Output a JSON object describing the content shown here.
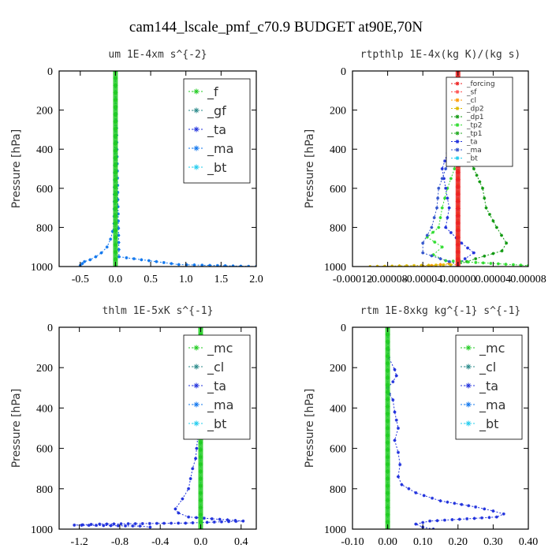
{
  "suptitle": "cam144_lscale_pmf_c70.9  BUDGET at90E,70N",
  "colors": {
    "green": "#22cc22",
    "teal": "#2a8a8a",
    "blue": "#2233dd",
    "dodger": "#1177ee",
    "cyan": "#22ccee",
    "red": "#ee2222",
    "lightred": "#ff5555",
    "orange": "#ff9900",
    "gold": "#ddbb00",
    "lime": "#33dd33",
    "darkgreen": "#119911",
    "forestgreen": "#22aa22",
    "royal": "#3355cc"
  },
  "chart_data": [
    {
      "type": "line",
      "title": "um  1E-4xm s^{-2}",
      "xlabel": "",
      "ylabel": "Pressure [hPa]",
      "xlim": [
        -0.8,
        2.0
      ],
      "ylim": [
        1000,
        0
      ],
      "xticks": [
        -0.5,
        0.0,
        0.5,
        1.0,
        1.5,
        2.0
      ],
      "xtick_labels": [
        "-0.5",
        "0.0",
        "0.5",
        "1.0",
        "1.5",
        "2.0"
      ],
      "yticks": [
        0,
        200,
        400,
        600,
        800,
        1000
      ],
      "ytick_labels": [
        "0",
        "200",
        "400",
        "600",
        "800",
        "1000"
      ],
      "legend": {
        "position": "top-right",
        "size": "large"
      },
      "series": [
        {
          "name": "_f",
          "color": "green",
          "bold": true,
          "pressure": [
            0,
            1000
          ],
          "values": [
            0,
            0
          ]
        },
        {
          "name": "_gf",
          "color": "teal",
          "pressure": [
            0,
            1000
          ],
          "values": [
            0,
            0
          ]
        },
        {
          "name": "_ta",
          "color": "blue",
          "pressure": [
            0,
            1000
          ],
          "values": [
            0,
            0
          ]
        },
        {
          "name": "_ma",
          "color": "dodger",
          "pressure": [
            0,
            950,
            990,
            1000
          ],
          "values": [
            0,
            0.05,
            0.9,
            2.0
          ]
        },
        {
          "name": "_bt",
          "color": "cyan",
          "pressure": [
            0,
            1000
          ],
          "values": [
            0,
            0
          ]
        },
        {
          "name": "",
          "color": "dodger",
          "pressure": [
            0,
            780,
            820,
            860,
            900,
            930,
            950,
            965,
            975,
            985,
            995
          ],
          "values": [
            0,
            -0.02,
            -0.04,
            -0.07,
            -0.12,
            -0.2,
            -0.28,
            -0.36,
            -0.44,
            -0.47,
            -0.5
          ]
        }
      ]
    },
    {
      "type": "line",
      "title": "rtpthlp  1E-4x(kg K)/(kg s)",
      "xlabel": "",
      "ylabel": "Pressure [hPa]",
      "xlim": [
        -0.00012,
        8e-05
      ],
      "ylim": [
        1000,
        0
      ],
      "xticks": [
        -0.00012,
        -8e-05,
        -4e-05,
        0.0,
        4e-05,
        8e-05
      ],
      "xtick_labels": [
        "-0.00012",
        "-0.00008",
        "-0.00004",
        "0.00000",
        "0.00004",
        "0.00008"
      ],
      "yticks": [
        0,
        200,
        400,
        600,
        800,
        1000
      ],
      "ytick_labels": [
        "0",
        "200",
        "400",
        "600",
        "800",
        "1000"
      ],
      "legend": {
        "position": "top-right",
        "size": "small"
      },
      "series": [
        {
          "name": "_forcing",
          "color": "red",
          "bold": true,
          "pressure": [
            0,
            1000
          ],
          "values": [
            0,
            0
          ]
        },
        {
          "name": "_sf",
          "color": "lightred",
          "pressure": [
            0,
            1000
          ],
          "values": [
            0,
            0
          ]
        },
        {
          "name": "_cl",
          "color": "orange",
          "pressure": [
            0,
            980,
            1000
          ],
          "values": [
            0,
            0,
            -4e-05
          ]
        },
        {
          "name": "_dp2",
          "color": "gold",
          "pressure": [
            0,
            990,
            1000
          ],
          "values": [
            0,
            0,
            -0.0001
          ]
        },
        {
          "name": "_dp1",
          "color": "darkgreen",
          "pressure": [
            0,
            300,
            400,
            500,
            600,
            700,
            800,
            880,
            920,
            960,
            990
          ],
          "values": [
            0,
            1e-06,
            8e-06,
            1.8e-05,
            2.8e-05,
            3.2e-05,
            4.4e-05,
            5.5e-05,
            5e-05,
            2e-05,
            0
          ]
        },
        {
          "name": "_tp2",
          "color": "lime",
          "pressure": [
            0,
            500,
            600,
            700,
            800,
            850,
            900,
            940,
            970,
            995
          ],
          "values": [
            0,
            -4e-06,
            -1.2e-05,
            -1.8e-05,
            -2.2e-05,
            -3.5e-05,
            -1.8e-05,
            -2.8e-05,
            -1.4e-05,
            8e-05
          ]
        },
        {
          "name": "_tp1",
          "color": "forestgreen",
          "pressure": [
            0,
            1000
          ],
          "values": [
            0,
            0
          ]
        },
        {
          "name": "_ta",
          "color": "blue",
          "pressure": [
            0,
            360,
            420,
            500,
            600,
            700,
            800,
            880,
            930,
            960,
            990
          ],
          "values": [
            0,
            -4e-06,
            -1.2e-05,
            -1.8e-05,
            -1.4e-05,
            -1e-05,
            -1.4e-05,
            4e-06,
            1.8e-05,
            8e-06,
            0
          ]
        },
        {
          "name": "_ma",
          "color": "royal",
          "pressure": [
            0,
            360,
            420,
            500,
            600,
            700,
            800,
            880,
            930,
            960,
            990
          ],
          "values": [
            0,
            1e-06,
            -6e-06,
            -1.4e-05,
            -2.2e-05,
            -2.4e-05,
            -3e-05,
            -4e-05,
            -4e-05,
            -2e-05,
            0
          ]
        },
        {
          "name": "_bt",
          "color": "cyan",
          "pressure": [
            0,
            1000
          ],
          "values": [
            0,
            0
          ]
        }
      ]
    },
    {
      "type": "line",
      "title": "thlm  1E-5xK s^{-1}",
      "xlabel": "",
      "ylabel": "Pressure [hPa]",
      "xlim": [
        -1.4,
        0.55
      ],
      "ylim": [
        1000,
        0
      ],
      "xticks": [
        -1.2,
        -0.8,
        -0.4,
        0.0,
        0.4
      ],
      "xtick_labels": [
        "-1.2",
        "-0.8",
        "-0.4",
        "0.0",
        "0.4"
      ],
      "yticks": [
        0,
        200,
        400,
        600,
        800,
        1000
      ],
      "ytick_labels": [
        "0",
        "200",
        "400",
        "600",
        "800",
        "1000"
      ],
      "legend": {
        "position": "top-right",
        "size": "large"
      },
      "series": [
        {
          "name": "_mc",
          "color": "green",
          "bold": true,
          "pressure": [
            0,
            1000
          ],
          "values": [
            0,
            0
          ]
        },
        {
          "name": "_cl",
          "color": "teal",
          "pressure": [
            0,
            1000
          ],
          "values": [
            0,
            0
          ]
        },
        {
          "name": "_ta",
          "color": "blue",
          "pressure": [
            0,
            200,
            300,
            400,
            500,
            600,
            650,
            700,
            750,
            800,
            850,
            900,
            920,
            940,
            960,
            970,
            975,
            980,
            985,
            990
          ],
          "values": [
            0,
            -0.005,
            -0.01,
            -0.015,
            -0.02,
            -0.04,
            -0.05,
            -0.08,
            -0.1,
            -0.12,
            -0.18,
            -0.25,
            -0.22,
            -0.12,
            0.42,
            -0.15,
            -1.0,
            -1.25,
            -0.6,
            -0.5
          ]
        },
        {
          "name": "_ma",
          "color": "dodger",
          "pressure": [
            0,
            1000
          ],
          "values": [
            0,
            0
          ]
        },
        {
          "name": "_bt",
          "color": "cyan",
          "pressure": [
            0,
            1000
          ],
          "values": [
            0,
            0
          ]
        }
      ]
    },
    {
      "type": "line",
      "title": "rtm  1E-8xkg kg^{-1} s^{-1}",
      "xlabel": "",
      "ylabel": "Pressure [hPa]",
      "xlim": [
        -0.1,
        0.4
      ],
      "ylim": [
        1000,
        0
      ],
      "xticks": [
        -0.1,
        0.0,
        0.1,
        0.2,
        0.3,
        0.4
      ],
      "xtick_labels": [
        "-0.10",
        "0.00",
        "0.10",
        "0.20",
        "0.30",
        "0.40"
      ],
      "yticks": [
        0,
        200,
        400,
        600,
        800,
        1000
      ],
      "ytick_labels": [
        "0",
        "200",
        "400",
        "600",
        "800",
        "1000"
      ],
      "legend": {
        "position": "top-right",
        "size": "large"
      },
      "series": [
        {
          "name": "_mc",
          "color": "green",
          "bold": true,
          "pressure": [
            0,
            1000
          ],
          "values": [
            0,
            0
          ]
        },
        {
          "name": "_cl",
          "color": "teal",
          "pressure": [
            0,
            1000
          ],
          "values": [
            0,
            0
          ]
        },
        {
          "name": "_ta",
          "color": "blue",
          "pressure": [
            0,
            150,
            210,
            240,
            270,
            300,
            330,
            360,
            420,
            500,
            560,
            620,
            680,
            740,
            780,
            820,
            860,
            890,
            910,
            925,
            940,
            960,
            975,
            990,
            1000
          ],
          "values": [
            0,
            0.003,
            0.02,
            0.025,
            0.015,
            0.0,
            0.005,
            0.015,
            0.02,
            0.03,
            0.02,
            0.03,
            0.035,
            0.03,
            0.04,
            0.08,
            0.15,
            0.25,
            0.3,
            0.33,
            0.31,
            0.12,
            0.08,
            0.1,
            0.13
          ]
        },
        {
          "name": "_ma",
          "color": "dodger",
          "pressure": [
            0,
            1000
          ],
          "values": [
            0,
            0
          ]
        },
        {
          "name": "_bt",
          "color": "cyan",
          "pressure": [
            0,
            1000
          ],
          "values": [
            0,
            0
          ]
        }
      ]
    }
  ]
}
